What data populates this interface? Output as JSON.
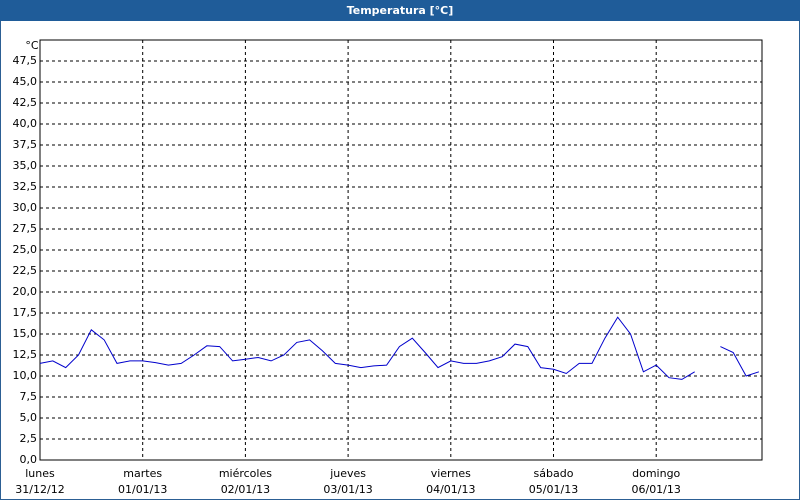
{
  "chart_data": {
    "type": "line",
    "title": "Temperatura [°C]",
    "y_unit": "°C",
    "categories": [
      "31/12/12",
      null,
      null,
      null,
      null,
      null,
      null,
      null,
      "01/01/13",
      null,
      null,
      null,
      null,
      null,
      null,
      null,
      "02/01/13",
      null,
      null,
      null,
      null,
      null,
      null,
      null,
      "03/01/13",
      null,
      null,
      null,
      null,
      null,
      null,
      null,
      "04/01/13",
      null,
      null,
      null,
      null,
      null,
      null,
      null,
      "05/01/13",
      null,
      null,
      null,
      null,
      null,
      null,
      null,
      "06/01/13",
      null,
      null,
      null,
      null,
      null,
      null,
      null,
      null
    ],
    "weekdays": [
      "lunes",
      null,
      null,
      null,
      null,
      null,
      null,
      null,
      "martes",
      null,
      null,
      null,
      null,
      null,
      null,
      null,
      "miércoles",
      null,
      null,
      null,
      null,
      null,
      null,
      null,
      "jueves",
      null,
      null,
      null,
      null,
      null,
      null,
      null,
      "viernes",
      null,
      null,
      null,
      null,
      null,
      null,
      null,
      "sábado",
      null,
      null,
      null,
      null,
      null,
      null,
      null,
      "domingo",
      null,
      null,
      null,
      null,
      null,
      null,
      null,
      null
    ],
    "series": [
      {
        "name": "Temperatura",
        "color": "#0000cc",
        "values": [
          11.5,
          11.8,
          11.0,
          12.5,
          15.5,
          14.3,
          11.5,
          11.8,
          11.8,
          11.6,
          11.3,
          11.5,
          12.5,
          13.6,
          13.5,
          11.8,
          12.0,
          12.2,
          11.8,
          12.5,
          14.0,
          14.3,
          13.0,
          11.5,
          11.3,
          11.0,
          11.2,
          11.3,
          13.5,
          14.5,
          12.8,
          11.0,
          11.8,
          11.5,
          11.5,
          11.8,
          12.3,
          13.8,
          13.5,
          11.0,
          10.8,
          10.3,
          11.5,
          11.5,
          14.5,
          17.0,
          15.0,
          10.5,
          11.3,
          9.8,
          9.6,
          10.5,
          null,
          13.5,
          12.8,
          10.0,
          10.5
        ]
      }
    ],
    "ylim": [
      0,
      50
    ],
    "yticks": [
      {
        "value": 0,
        "label": "0,0"
      },
      {
        "value": 2.5,
        "label": "2,5"
      },
      {
        "value": 5,
        "label": "5,0"
      },
      {
        "value": 7.5,
        "label": "7,5"
      },
      {
        "value": 10,
        "label": "10,0"
      },
      {
        "value": 12.5,
        "label": "12,5"
      },
      {
        "value": 15,
        "label": "15,0"
      },
      {
        "value": 17.5,
        "label": "17,5"
      },
      {
        "value": 20,
        "label": "20,0"
      },
      {
        "value": 22.5,
        "label": "22,5"
      },
      {
        "value": 25,
        "label": "25,0"
      },
      {
        "value": 27.5,
        "label": "27,5"
      },
      {
        "value": 30,
        "label": "30,0"
      },
      {
        "value": 32.5,
        "label": "32,5"
      },
      {
        "value": 35,
        "label": "35,0"
      },
      {
        "value": 37.5,
        "label": "37,5"
      },
      {
        "value": 40,
        "label": "40,0"
      },
      {
        "value": 42.5,
        "label": "42,5"
      },
      {
        "value": 45,
        "label": "45,0"
      },
      {
        "value": 47.5,
        "label": "47,5"
      }
    ],
    "grid": true
  }
}
